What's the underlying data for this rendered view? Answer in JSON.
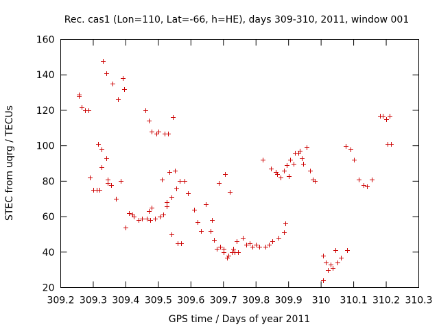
{
  "chart_data": {
    "type": "scatter",
    "title": "Rec. cas1 (Lon=110, Lat=-66, h=HE), days 309-310, 2011, window 001",
    "xlabel": "GPS time / Days of year 2011",
    "ylabel": "STEC from uqrg / TECUs",
    "xlim": [
      309.2,
      310.3
    ],
    "ylim": [
      20,
      160
    ],
    "x_ticks": [
      309.2,
      309.3,
      309.4,
      309.5,
      309.6,
      309.7,
      309.8,
      309.9,
      310,
      310.1,
      310.2,
      310.3
    ],
    "x_tick_labels": [
      "309.2",
      "309.3",
      "309.4",
      "309.5",
      "309.6",
      "309.7",
      "309.8",
      "309.9",
      "310",
      "310.1",
      "310.2",
      "310.3"
    ],
    "y_ticks": [
      20,
      40,
      60,
      80,
      100,
      120,
      140,
      160
    ],
    "y_tick_labels": [
      "20",
      "40",
      "60",
      "80",
      "100",
      "120",
      "140",
      "160"
    ],
    "grid": false,
    "legend": "none",
    "marker": "plus",
    "color": "#cc0000",
    "series": [
      {
        "points": [
          [
            309.255,
            129
          ],
          [
            309.255,
            128
          ],
          [
            309.265,
            122
          ],
          [
            309.275,
            120
          ],
          [
            309.285,
            120
          ],
          [
            309.29,
            82
          ],
          [
            309.3,
            75
          ],
          [
            309.31,
            75
          ],
          [
            309.315,
            101
          ],
          [
            309.32,
            75
          ],
          [
            309.325,
            88
          ],
          [
            309.325,
            98
          ],
          [
            309.33,
            148
          ],
          [
            309.34,
            141
          ],
          [
            309.34,
            93
          ],
          [
            309.345,
            81
          ],
          [
            309.345,
            79
          ],
          [
            309.355,
            78
          ],
          [
            309.36,
            135
          ],
          [
            309.37,
            70
          ],
          [
            309.375,
            126
          ],
          [
            309.385,
            80
          ],
          [
            309.39,
            138
          ],
          [
            309.395,
            132
          ],
          [
            309.4,
            54
          ],
          [
            309.41,
            62
          ],
          [
            309.42,
            61
          ],
          [
            309.425,
            60
          ],
          [
            309.44,
            58
          ],
          [
            309.45,
            59
          ],
          [
            309.46,
            120
          ],
          [
            309.465,
            59
          ],
          [
            309.47,
            114
          ],
          [
            309.47,
            63
          ],
          [
            309.475,
            58
          ],
          [
            309.48,
            65
          ],
          [
            309.48,
            108
          ],
          [
            309.49,
            59
          ],
          [
            309.495,
            107
          ],
          [
            309.5,
            108
          ],
          [
            309.505,
            60
          ],
          [
            309.51,
            81
          ],
          [
            309.515,
            61
          ],
          [
            309.52,
            107
          ],
          [
            309.525,
            66
          ],
          [
            309.525,
            68
          ],
          [
            309.53,
            107
          ],
          [
            309.535,
            85
          ],
          [
            309.54,
            71
          ],
          [
            309.54,
            50
          ],
          [
            309.545,
            116
          ],
          [
            309.55,
            86
          ],
          [
            309.555,
            76
          ],
          [
            309.56,
            45
          ],
          [
            309.565,
            80
          ],
          [
            309.57,
            45
          ],
          [
            309.58,
            80
          ],
          [
            309.59,
            73
          ],
          [
            309.61,
            64
          ],
          [
            309.62,
            57
          ],
          [
            309.63,
            52
          ],
          [
            309.645,
            67
          ],
          [
            309.66,
            52
          ],
          [
            309.665,
            58
          ],
          [
            309.67,
            47
          ],
          [
            309.68,
            42
          ],
          [
            309.685,
            79
          ],
          [
            309.69,
            43
          ],
          [
            309.7,
            42
          ],
          [
            309.7,
            40
          ],
          [
            309.705,
            84
          ],
          [
            309.71,
            37
          ],
          [
            309.715,
            38
          ],
          [
            309.72,
            74
          ],
          [
            309.725,
            40
          ],
          [
            309.73,
            42
          ],
          [
            309.735,
            40
          ],
          [
            309.74,
            46
          ],
          [
            309.745,
            40
          ],
          [
            309.76,
            48
          ],
          [
            309.77,
            44
          ],
          [
            309.78,
            45
          ],
          [
            309.79,
            43
          ],
          [
            309.8,
            44
          ],
          [
            309.81,
            43
          ],
          [
            309.82,
            92
          ],
          [
            309.83,
            43
          ],
          [
            309.84,
            44
          ],
          [
            309.845,
            87
          ],
          [
            309.85,
            46
          ],
          [
            309.86,
            85
          ],
          [
            309.865,
            84
          ],
          [
            309.87,
            48
          ],
          [
            309.875,
            82
          ],
          [
            309.885,
            51
          ],
          [
            309.885,
            86
          ],
          [
            309.89,
            56
          ],
          [
            309.895,
            89
          ],
          [
            309.9,
            83
          ],
          [
            309.905,
            92
          ],
          [
            309.915,
            90
          ],
          [
            309.92,
            96
          ],
          [
            309.93,
            96
          ],
          [
            309.935,
            97
          ],
          [
            309.94,
            93
          ],
          [
            309.945,
            90
          ],
          [
            309.955,
            99
          ],
          [
            309.965,
            86
          ],
          [
            309.975,
            81
          ],
          [
            309.98,
            80
          ],
          [
            310.005,
            38
          ],
          [
            310.005,
            24
          ],
          [
            310.015,
            34
          ],
          [
            310.02,
            30
          ],
          [
            310.03,
            33
          ],
          [
            310.035,
            31
          ],
          [
            310.045,
            41
          ],
          [
            310.05,
            34
          ],
          [
            310.06,
            37
          ],
          [
            310.075,
            100
          ],
          [
            310.08,
            41
          ],
          [
            310.09,
            98
          ],
          [
            310.1,
            92
          ],
          [
            310.115,
            81
          ],
          [
            310.13,
            78
          ],
          [
            310.14,
            77
          ],
          [
            310.155,
            81
          ],
          [
            310.18,
            117
          ],
          [
            310.19,
            117
          ],
          [
            310.2,
            115
          ],
          [
            310.205,
            101
          ],
          [
            310.21,
            117
          ],
          [
            310.215,
            101
          ]
        ]
      }
    ]
  }
}
